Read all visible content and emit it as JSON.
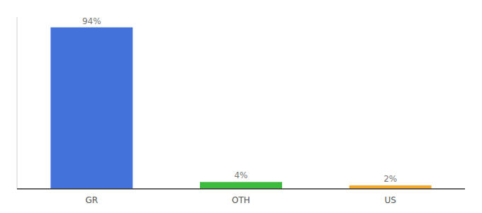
{
  "chart_data": {
    "type": "bar",
    "categories": [
      "GR",
      "OTH",
      "US"
    ],
    "values": [
      94,
      4,
      2
    ],
    "value_labels": [
      "94%",
      "4%",
      "2%"
    ],
    "colors": [
      "#4472db",
      "#3dbb3d",
      "#f5a623"
    ],
    "ylim": [
      0,
      100
    ],
    "data_labels": true,
    "tick_labels": "x"
  }
}
